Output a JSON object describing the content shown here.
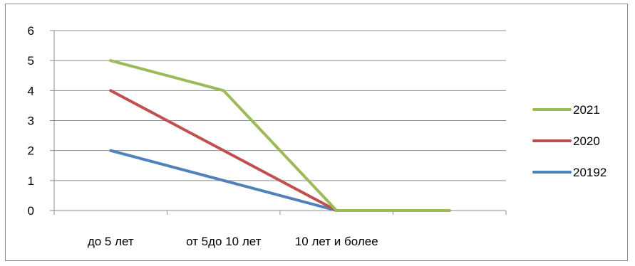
{
  "chart_data": {
    "type": "line",
    "title": "",
    "xlabel": "",
    "ylabel": "",
    "categories": [
      "до 5 лет",
      "от 5до 10 лет",
      "10 лет и более",
      ""
    ],
    "ylim": [
      0,
      6
    ],
    "yticks": [
      "0",
      "1",
      "2",
      "3",
      "4",
      "5",
      "6"
    ],
    "grid": true,
    "legend_position": "right",
    "series": [
      {
        "name": "2021",
        "values": [
          5,
          4,
          0,
          0
        ],
        "color": "#9bbb59"
      },
      {
        "name": "2020",
        "values": [
          4,
          2,
          0,
          0
        ],
        "color": "#c0504d"
      },
      {
        "name": "20192",
        "values": [
          2,
          1,
          0,
          0
        ],
        "color": "#4f81bd"
      }
    ],
    "legend_order": [
      "2021",
      "2020",
      "20192"
    ]
  }
}
